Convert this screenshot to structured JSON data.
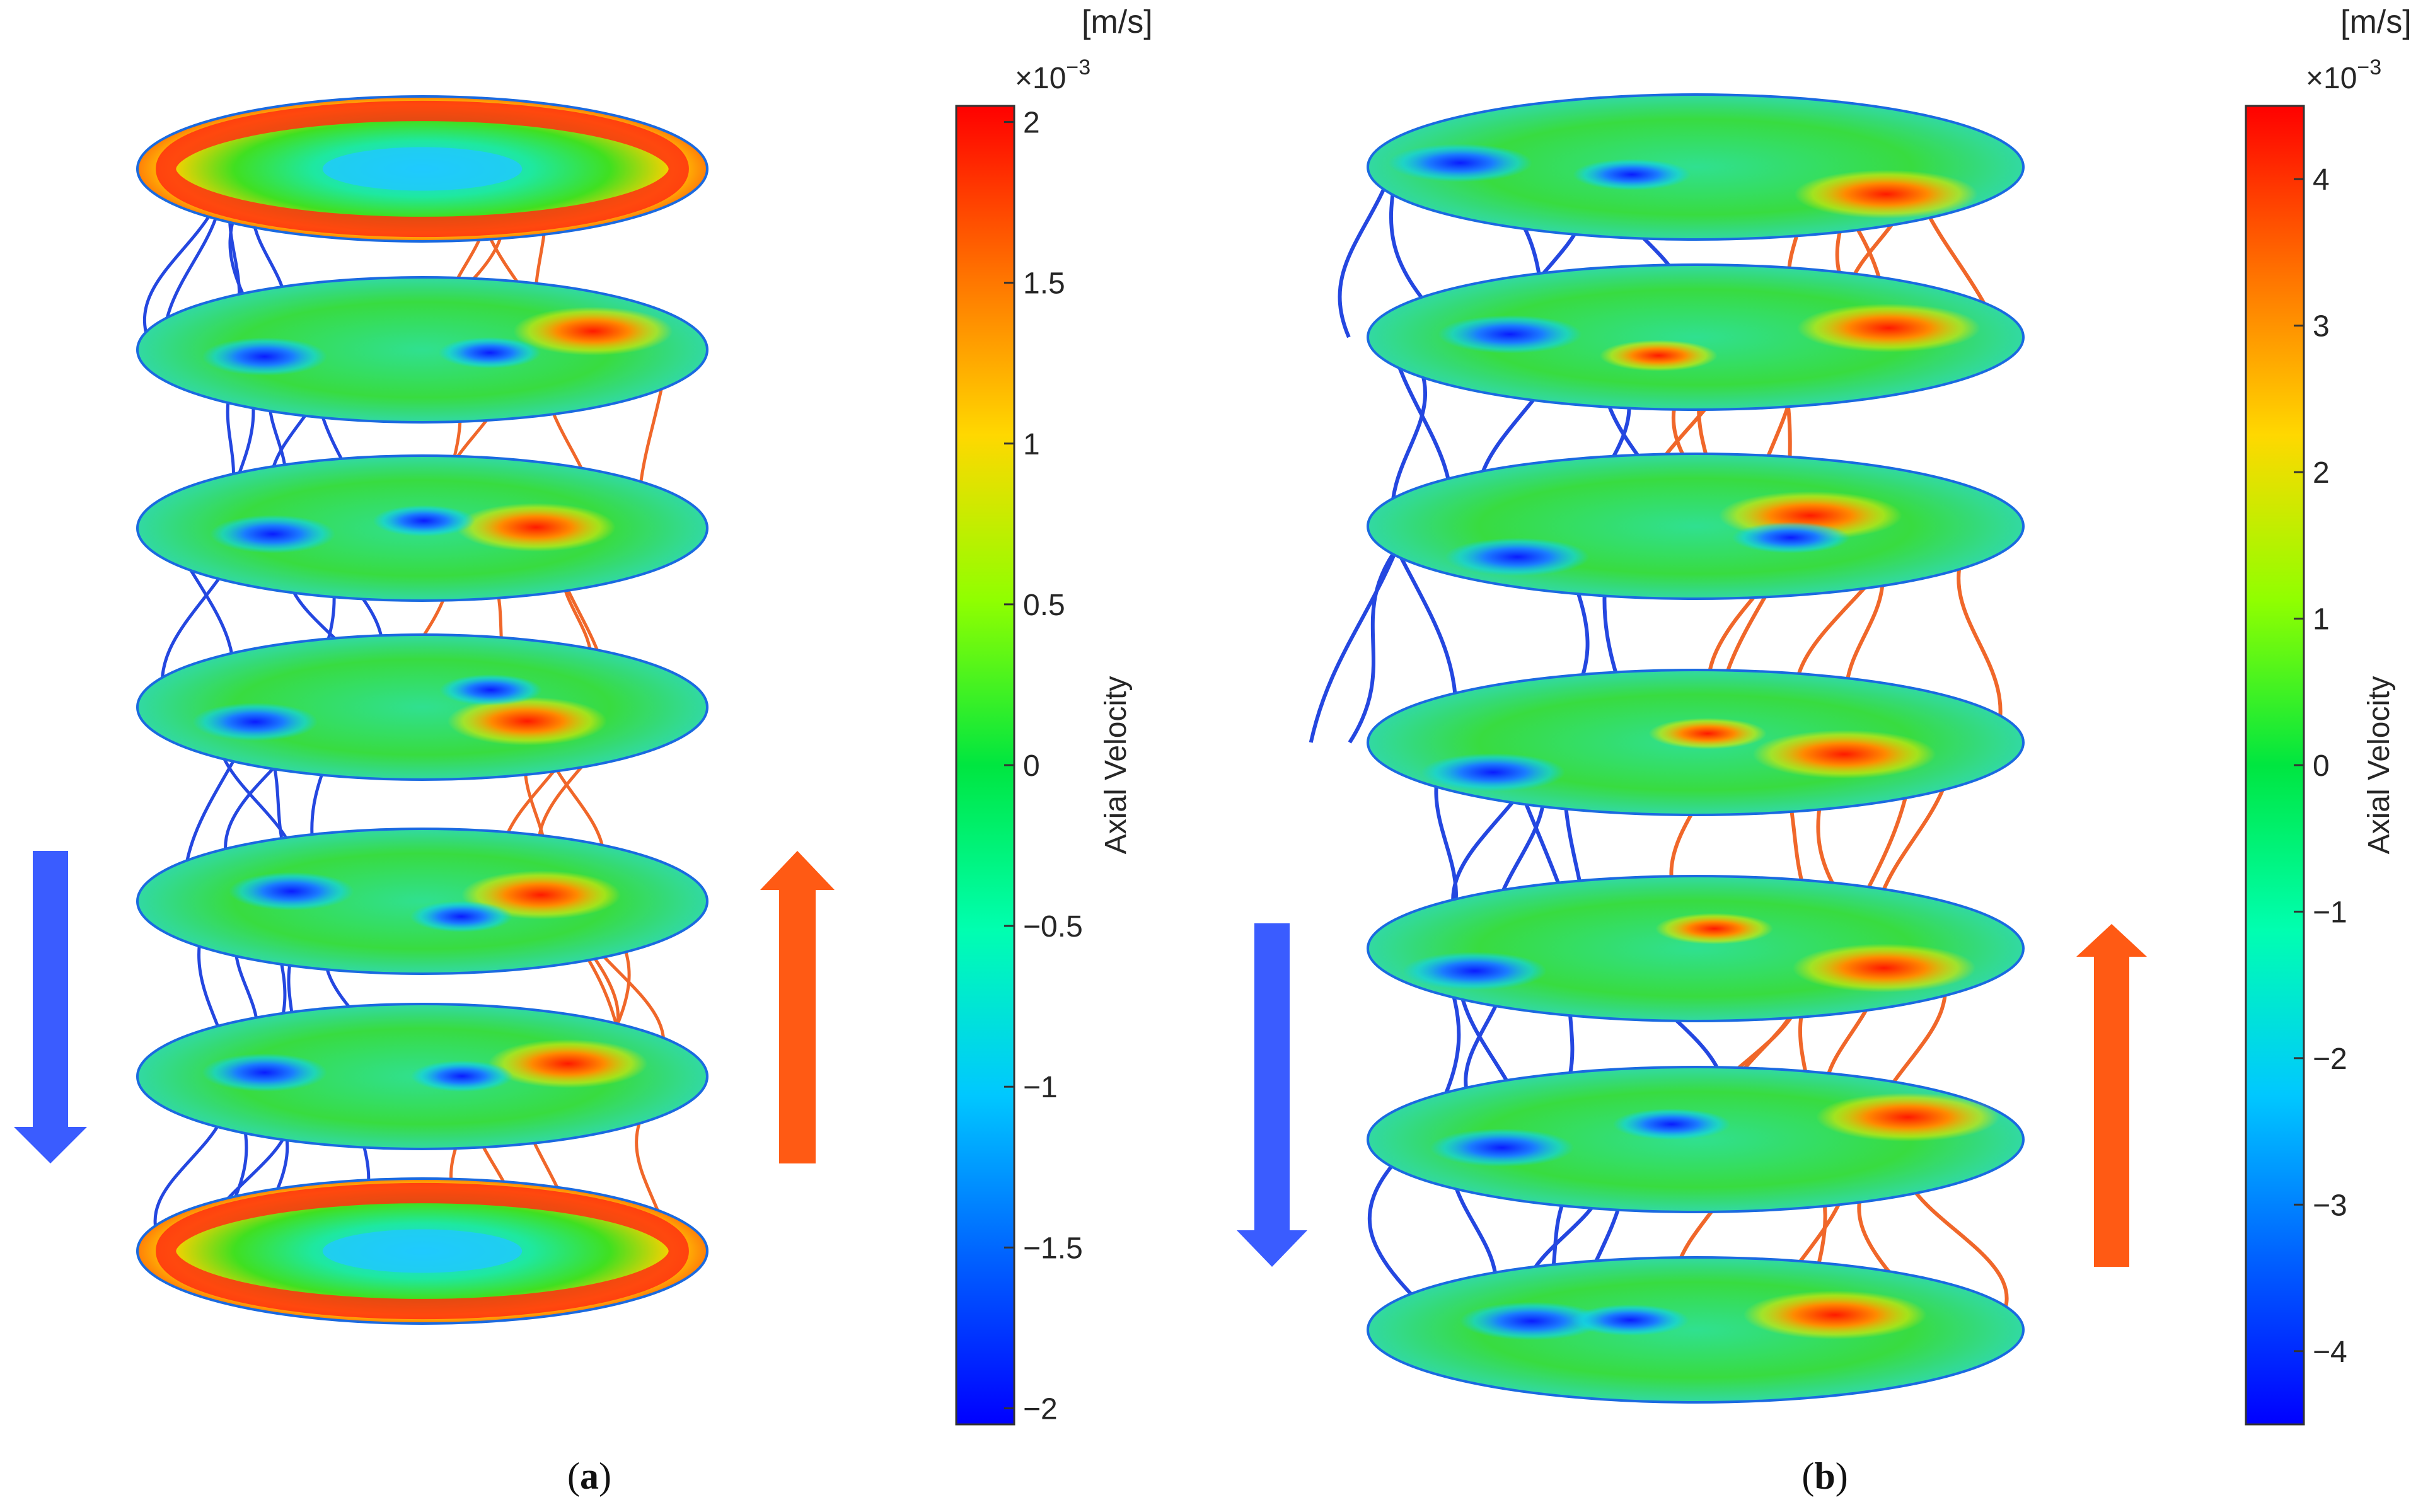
{
  "panels": [
    {
      "caption_label": "a",
      "units": "[m/s]",
      "scale_prefix": "×10",
      "scale_exponent": "−3",
      "colorbar_label": "Axial Velocity",
      "ticks": [
        {
          "value": 2,
          "label": "2"
        },
        {
          "value": 1.5,
          "label": "1.5"
        },
        {
          "value": 1,
          "label": "1"
        },
        {
          "value": 0.5,
          "label": "0.5"
        },
        {
          "value": 0,
          "label": "0"
        },
        {
          "value": -0.5,
          "label": "−0.5"
        },
        {
          "value": -1,
          "label": "−1"
        },
        {
          "value": -1.5,
          "label": "−1.5"
        },
        {
          "value": -2,
          "label": "−2"
        }
      ],
      "range": [
        -2.05,
        2.05
      ],
      "downflow_arrow_color": "#3a5cff",
      "upflow_arrow_color": "#ff5a14"
    },
    {
      "caption_label": "b",
      "units": "[m/s]",
      "scale_prefix": "×10",
      "scale_exponent": "−3",
      "colorbar_label": "Axial Velocity",
      "ticks": [
        {
          "value": 4,
          "label": "4"
        },
        {
          "value": 3,
          "label": "3"
        },
        {
          "value": 2,
          "label": "2"
        },
        {
          "value": 1,
          "label": "1"
        },
        {
          "value": 0,
          "label": "0"
        },
        {
          "value": -1,
          "label": "−1"
        },
        {
          "value": -2,
          "label": "−2"
        },
        {
          "value": -3,
          "label": "−3"
        },
        {
          "value": -4,
          "label": "−4"
        }
      ],
      "range": [
        -4.5,
        4.5
      ],
      "downflow_arrow_color": "#3a5cff",
      "upflow_arrow_color": "#ff5a14"
    }
  ],
  "streamline_colors": {
    "down": "#2447e0",
    "up": "#f0672a"
  },
  "colormap": [
    "#0000ff",
    "#0080ff",
    "#00e6e6",
    "#00d65a",
    "#55d600",
    "#e6e600",
    "#ffa000",
    "#ff2000"
  ]
}
